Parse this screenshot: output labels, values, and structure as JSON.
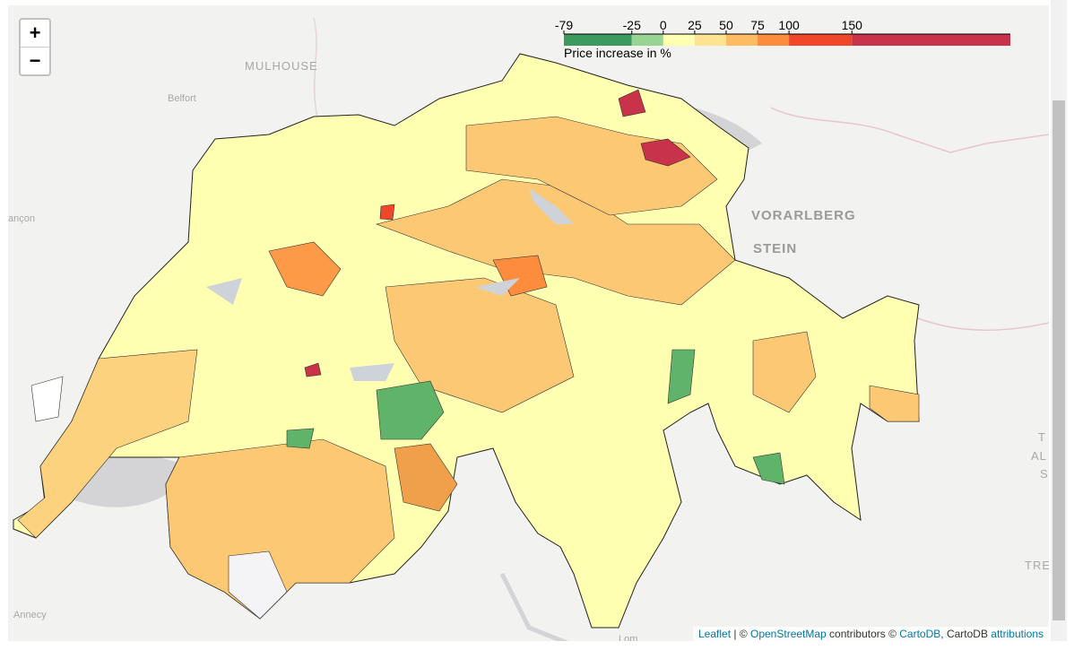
{
  "zoom": {
    "in": "+",
    "out": "−"
  },
  "legend": {
    "caption": "Price increase in %",
    "ticks": [
      -79,
      -25,
      0,
      25,
      50,
      75,
      100,
      150
    ],
    "range": [
      -79,
      276
    ],
    "colors": [
      "#3d9a5e",
      "#98d594",
      "#ffffb2",
      "#fee391",
      "#fdbb63",
      "#fd8d3c",
      "#f0462a",
      "#c8334a"
    ]
  },
  "place_labels": [
    "MULHOUSE",
    "Belfort",
    "ançon",
    "VORARLBERG",
    "STEIN",
    "Annecy",
    "TRE",
    "T",
    "AL",
    "S",
    "Lom"
  ],
  "attribution": [
    "Leaflet",
    " | © ",
    "OpenStreetMap",
    " contributors © ",
    "CartoDB",
    ", CartoDB ",
    "attributions"
  ]
}
